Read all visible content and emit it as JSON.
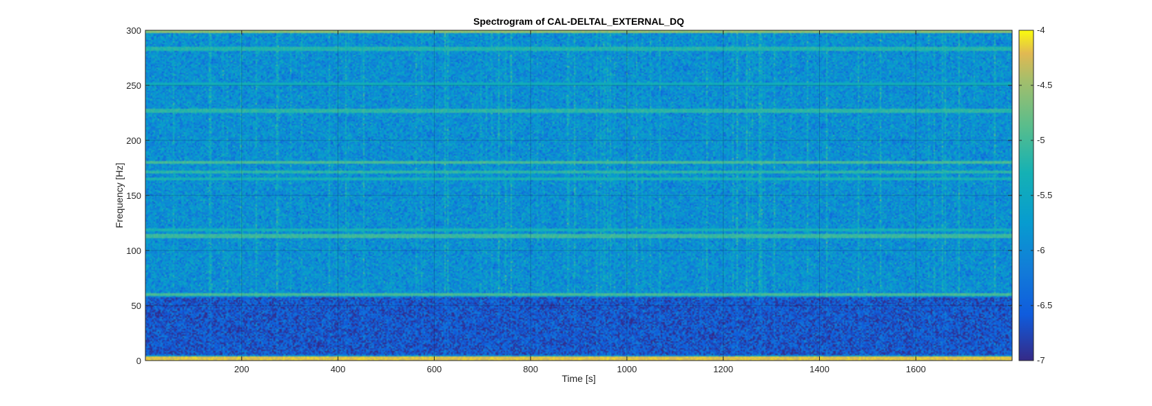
{
  "chart_data": {
    "type": "heatmap",
    "title": "Spectrogram of CAL-DELTAL_EXTERNAL_DQ",
    "xlabel": "Time [s]",
    "ylabel": "Frequency [Hz]",
    "xlim": [
      0,
      1800
    ],
    "ylim": [
      0,
      300
    ],
    "xticks": [
      200,
      400,
      600,
      800,
      1000,
      1200,
      1400,
      1600
    ],
    "yticks": [
      0,
      50,
      100,
      150,
      200,
      250,
      300
    ],
    "colorbar": {
      "clim": [
        -7,
        -4
      ],
      "ticks": [
        -7,
        -6.5,
        -6,
        -5.5,
        -5,
        -4.5,
        -4
      ],
      "colormap": "parula"
    },
    "grid": true,
    "background_level": -5.9,
    "low_band": {
      "freq_range": [
        5,
        57
      ],
      "level": -6.6
    },
    "persistent_lines": [
      {
        "freq": 2,
        "level": -4.2
      },
      {
        "freq": 60,
        "level": -5.0
      },
      {
        "freq": 113,
        "level": -5.05
      },
      {
        "freq": 119,
        "level": -5.3
      },
      {
        "freq": 165,
        "level": -5.3
      },
      {
        "freq": 171,
        "level": -5.15
      },
      {
        "freq": 180,
        "level": -5.0
      },
      {
        "freq": 227,
        "level": -5.15
      },
      {
        "freq": 251,
        "level": -5.4
      },
      {
        "freq": 283,
        "level": -5.2
      },
      {
        "freq": 299,
        "level": -4.6
      }
    ]
  }
}
